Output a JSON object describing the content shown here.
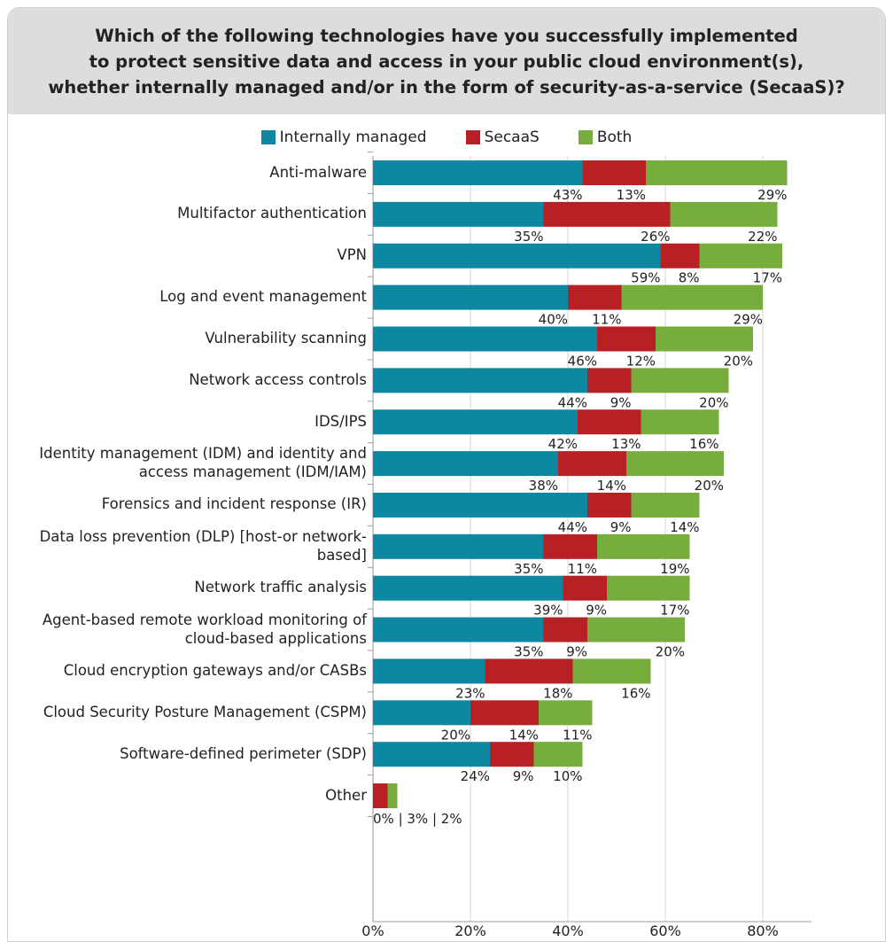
{
  "chart_data": {
    "type": "bar",
    "orientation": "horizontal",
    "stacked": true,
    "title_lines": [
      "Which of the following technologies have you successfully implemented",
      "to protect sensitive data and access in your public cloud environment(s),",
      "whether internally managed and/or in the form of security-as-a-service (SecaaS)?"
    ],
    "categories": [
      [
        "Anti-malware"
      ],
      [
        "Multifactor authentication"
      ],
      [
        "VPN"
      ],
      [
        "Log and event management"
      ],
      [
        "Vulnerability scanning"
      ],
      [
        "Network access controls"
      ],
      [
        "IDS/IPS"
      ],
      [
        "Identity management (IDM) and identity and",
        "access management (IDM/IAM)"
      ],
      [
        "Forensics and incident response (IR)"
      ],
      [
        "Data loss prevention (DLP) [host-or network-",
        "based]"
      ],
      [
        "Network traffic analysis"
      ],
      [
        "Agent-based remote workload monitoring of",
        "cloud-based applications"
      ],
      [
        "Cloud encryption gateways and/or CASBs"
      ],
      [
        "Cloud Security Posture Management (CSPM)"
      ],
      [
        "Software-defined perimeter (SDP)"
      ],
      [
        "Other"
      ]
    ],
    "series": [
      {
        "name": "Internally managed",
        "color": "#0e87a0",
        "values": [
          43,
          35,
          59,
          40,
          46,
          44,
          42,
          38,
          44,
          35,
          39,
          35,
          23,
          20,
          24,
          0
        ]
      },
      {
        "name": "SecaaS",
        "color": "#b72025",
        "values": [
          13,
          26,
          8,
          11,
          12,
          9,
          13,
          14,
          9,
          11,
          9,
          9,
          18,
          14,
          9,
          3
        ]
      },
      {
        "name": "Both",
        "color": "#77ad3c",
        "values": [
          29,
          22,
          17,
          29,
          20,
          20,
          16,
          20,
          14,
          19,
          17,
          20,
          16,
          11,
          10,
          2
        ]
      }
    ],
    "value_labels": [
      [
        "43%",
        "13%",
        "29%"
      ],
      [
        "35%",
        "26%",
        "22%"
      ],
      [
        "59%",
        "8%",
        "17%"
      ],
      [
        "40%",
        "11%",
        "29%"
      ],
      [
        "46%",
        "12%",
        "20%"
      ],
      [
        "44%",
        "9%",
        "20%"
      ],
      [
        "42%",
        "13%",
        "16%"
      ],
      [
        "38%",
        "14%",
        "20%"
      ],
      [
        "44%",
        "9%",
        "14%"
      ],
      [
        "35%",
        "11%",
        "19%"
      ],
      [
        "39%",
        "9%",
        "17%"
      ],
      [
        "35%",
        "9%",
        "20%"
      ],
      [
        "23%",
        "18%",
        "16%"
      ],
      [
        "20%",
        "14%",
        "11%"
      ],
      [
        "24%",
        "9%",
        "10%"
      ]
    ],
    "other_label": "0% | 3% | 2%",
    "xlim": [
      0,
      90
    ],
    "xticks": [
      0,
      20,
      40,
      60,
      80
    ],
    "xtick_labels": [
      "0%",
      "20%",
      "40%",
      "60%",
      "80%"
    ],
    "grid": true,
    "legend_position": "top-center"
  }
}
